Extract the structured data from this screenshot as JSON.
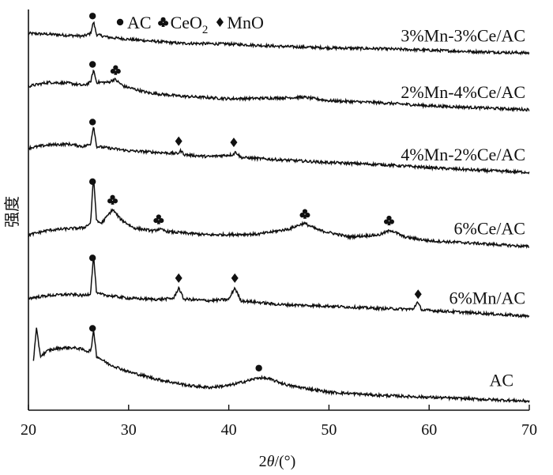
{
  "chart_data": {
    "type": "line",
    "title": "",
    "xlabel_prefix": "2",
    "xlabel_symbol": "θ",
    "xlabel_suffix": "/(°)",
    "ylabel": "强度",
    "xlim": [
      20,
      70
    ],
    "xticks": [
      20,
      30,
      40,
      50,
      60,
      70
    ],
    "grid": false,
    "legend": {
      "placement": "top",
      "items": [
        {
          "marker": "circle",
          "label": "AC"
        },
        {
          "marker": "club",
          "label": "CeO",
          "sub": "2"
        },
        {
          "marker": "diamond",
          "label": "MnO"
        }
      ]
    },
    "series": [
      {
        "name": "3%Mn-3%Ce/AC",
        "baseline_level": 0.93,
        "points": [
          [
            20,
            0.955
          ],
          [
            22,
            0.953
          ],
          [
            24,
            0.95
          ],
          [
            25.5,
            0.948
          ],
          [
            26.2,
            0.955
          ],
          [
            26.5,
            0.985
          ],
          [
            26.8,
            0.952
          ],
          [
            28,
            0.945
          ],
          [
            30,
            0.94
          ],
          [
            35,
            0.93
          ],
          [
            40,
            0.928
          ],
          [
            45,
            0.922
          ],
          [
            50,
            0.918
          ],
          [
            55,
            0.916
          ],
          [
            60,
            0.912
          ],
          [
            65,
            0.908
          ],
          [
            70,
            0.905
          ]
        ],
        "markers": [
          {
            "type": "circle",
            "x": 26.4
          }
        ]
      },
      {
        "name": "2%Mn-4%Ce/AC",
        "points": [
          [
            20,
            0.82
          ],
          [
            22,
            0.83
          ],
          [
            24,
            0.828
          ],
          [
            25.5,
            0.822
          ],
          [
            26.2,
            0.83
          ],
          [
            26.5,
            0.862
          ],
          [
            26.8,
            0.83
          ],
          [
            28,
            0.83
          ],
          [
            28.6,
            0.838
          ],
          [
            29.5,
            0.82
          ],
          [
            32,
            0.803
          ],
          [
            35,
            0.795
          ],
          [
            40,
            0.788
          ],
          [
            45,
            0.79
          ],
          [
            47.5,
            0.792
          ],
          [
            50,
            0.783
          ],
          [
            55,
            0.778
          ],
          [
            60,
            0.77
          ],
          [
            65,
            0.765
          ],
          [
            70,
            0.76
          ]
        ],
        "markers": [
          {
            "type": "circle",
            "x": 26.4
          },
          {
            "type": "club",
            "x": 28.7
          }
        ]
      },
      {
        "name": "4%Mn-2%Ce/AC",
        "points": [
          [
            20,
            0.662
          ],
          [
            22,
            0.67
          ],
          [
            24,
            0.672
          ],
          [
            25.5,
            0.666
          ],
          [
            26.2,
            0.672
          ],
          [
            26.5,
            0.72
          ],
          [
            26.8,
            0.666
          ],
          [
            28,
            0.662
          ],
          [
            30,
            0.655
          ],
          [
            34.9,
            0.648
          ],
          [
            35.2,
            0.655
          ],
          [
            35.6,
            0.645
          ],
          [
            38,
            0.64
          ],
          [
            40.4,
            0.645
          ],
          [
            40.7,
            0.652
          ],
          [
            41.2,
            0.638
          ],
          [
            45,
            0.632
          ],
          [
            50,
            0.625
          ],
          [
            55,
            0.62
          ],
          [
            60,
            0.612
          ],
          [
            65,
            0.605
          ],
          [
            70,
            0.6
          ]
        ],
        "markers": [
          {
            "type": "circle",
            "x": 26.4
          },
          {
            "type": "diamond",
            "x": 35
          },
          {
            "type": "diamond",
            "x": 40.5
          }
        ]
      },
      {
        "name": "6%Ce/AC",
        "points": [
          [
            20,
            0.44
          ],
          [
            22,
            0.452
          ],
          [
            24,
            0.456
          ],
          [
            25.5,
            0.458
          ],
          [
            26.2,
            0.47
          ],
          [
            26.5,
            0.59
          ],
          [
            26.8,
            0.475
          ],
          [
            27.3,
            0.47
          ],
          [
            28.4,
            0.505
          ],
          [
            29.2,
            0.48
          ],
          [
            30.5,
            0.458
          ],
          [
            32.5,
            0.45
          ],
          [
            33,
            0.455
          ],
          [
            34,
            0.448
          ],
          [
            38,
            0.44
          ],
          [
            43,
            0.442
          ],
          [
            46,
            0.455
          ],
          [
            47.5,
            0.47
          ],
          [
            49,
            0.452
          ],
          [
            52,
            0.435
          ],
          [
            55,
            0.44
          ],
          [
            56.2,
            0.452
          ],
          [
            57.5,
            0.435
          ],
          [
            60,
            0.425
          ],
          [
            65,
            0.418
          ],
          [
            70,
            0.41
          ]
        ],
        "markers": [
          {
            "type": "circle",
            "x": 26.4
          },
          {
            "type": "club",
            "x": 28.4
          },
          {
            "type": "club",
            "x": 33
          },
          {
            "type": "club",
            "x": 47.6
          },
          {
            "type": "club",
            "x": 56
          }
        ]
      },
      {
        "name": "6%Mn/AC",
        "points": [
          [
            20,
            0.278
          ],
          [
            22,
            0.285
          ],
          [
            24,
            0.288
          ],
          [
            25.5,
            0.285
          ],
          [
            26.2,
            0.29
          ],
          [
            26.5,
            0.39
          ],
          [
            26.8,
            0.29
          ],
          [
            28,
            0.285
          ],
          [
            30,
            0.278
          ],
          [
            33,
            0.275
          ],
          [
            34.5,
            0.278
          ],
          [
            35,
            0.305
          ],
          [
            35.5,
            0.276
          ],
          [
            38,
            0.272
          ],
          [
            40,
            0.275
          ],
          [
            40.6,
            0.305
          ],
          [
            41.2,
            0.272
          ],
          [
            45,
            0.262
          ],
          [
            50,
            0.258
          ],
          [
            55,
            0.252
          ],
          [
            58.4,
            0.25
          ],
          [
            58.8,
            0.268
          ],
          [
            59.3,
            0.248
          ],
          [
            65,
            0.24
          ],
          [
            70,
            0.232
          ]
        ],
        "markers": [
          {
            "type": "circle",
            "x": 26.4
          },
          {
            "type": "diamond",
            "x": 35
          },
          {
            "type": "diamond",
            "x": 40.6
          },
          {
            "type": "diamond",
            "x": 58.9
          }
        ]
      },
      {
        "name": "AC",
        "points": [
          [
            20.5,
            0.12
          ],
          [
            20.8,
            0.2
          ],
          [
            21.2,
            0.13
          ],
          [
            22,
            0.145
          ],
          [
            23,
            0.15
          ],
          [
            24,
            0.152
          ],
          [
            25,
            0.15
          ],
          [
            26,
            0.142
          ],
          [
            26.3,
            0.15
          ],
          [
            26.5,
            0.2
          ],
          [
            26.8,
            0.13
          ],
          [
            28,
            0.11
          ],
          [
            30,
            0.09
          ],
          [
            33,
            0.07
          ],
          [
            36,
            0.055
          ],
          [
            38,
            0.05
          ],
          [
            40,
            0.055
          ],
          [
            42,
            0.068
          ],
          [
            43,
            0.075
          ],
          [
            44,
            0.072
          ],
          [
            46,
            0.055
          ],
          [
            50,
            0.038
          ],
          [
            55,
            0.03
          ],
          [
            60,
            0.025
          ],
          [
            65,
            0.02
          ],
          [
            70,
            0.015
          ]
        ],
        "markers": [
          {
            "type": "circle",
            "x": 26.4
          },
          {
            "type": "circle",
            "x": 43
          }
        ]
      }
    ]
  }
}
